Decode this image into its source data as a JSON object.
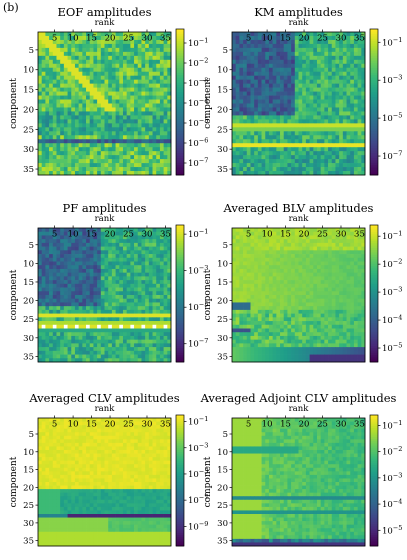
{
  "figure": {
    "panel_label": "(b)"
  },
  "chart_data": [
    {
      "type": "heatmap",
      "title": "EOF amplitudes",
      "xlabel": "rank",
      "ylabel": "component",
      "x_ticks": [
        "5",
        "10",
        "15",
        "20",
        "25",
        "30",
        "35"
      ],
      "y_ticks": [
        "5",
        "10",
        "15",
        "20",
        "25",
        "30",
        "35"
      ],
      "n_rows": 36,
      "n_cols": 36,
      "color_scale": "log",
      "colormap": "viridis",
      "colorbar_ticks": [
        "10^-1",
        "10^-2",
        "10^-3",
        "10^-4",
        "10^-5",
        "10^-6",
        "10^-7"
      ],
      "colorbar_range_log10": [
        -7.6,
        -0.3
      ],
      "description": "patchy, mostly mid-to-high amplitudes with diagonal bright structure; dark band near component 28"
    },
    {
      "type": "heatmap",
      "title": "KM amplitudes",
      "xlabel": "rank",
      "ylabel": "component",
      "x_ticks": [
        "5",
        "10",
        "15",
        "20",
        "25",
        "30",
        "35"
      ],
      "y_ticks": [
        "5",
        "10",
        "15",
        "20",
        "25",
        "30",
        "35"
      ],
      "n_rows": 36,
      "n_cols": 36,
      "color_scale": "log",
      "colormap": "viridis",
      "colorbar_ticks": [
        "10^-1",
        "10^-3",
        "10^-5",
        "10^-7"
      ],
      "colorbar_range_log10": [
        -8.0,
        -0.3
      ],
      "description": "dark upper-left block (components 1-21, ranks 1-17); bright yellow bands at components 24 and 29"
    },
    {
      "type": "heatmap",
      "title": "PF amplitudes",
      "xlabel": "rank",
      "ylabel": "component",
      "x_ticks": [
        "5",
        "10",
        "15",
        "20",
        "25",
        "30",
        "35"
      ],
      "y_ticks": [
        "5",
        "10",
        "15",
        "20",
        "25",
        "30",
        "35"
      ],
      "n_rows": 36,
      "n_cols": 36,
      "color_scale": "log",
      "colormap": "viridis",
      "colorbar_ticks": [
        "10^-1",
        "10^-3",
        "10^-5",
        "10^-7"
      ],
      "colorbar_range_log10": [
        -8.0,
        -0.5
      ],
      "description": "dark upper-left block; bright band at component 24 and dashed bright/white row at component 27"
    },
    {
      "type": "heatmap",
      "title": "Averaged BLV amplitudes",
      "xlabel": "rank",
      "ylabel": "component",
      "x_ticks": [
        "5",
        "10",
        "15",
        "20",
        "25",
        "30",
        "35"
      ],
      "y_ticks": [
        "5",
        "10",
        "15",
        "20",
        "25",
        "30",
        "35"
      ],
      "n_rows": 36,
      "n_cols": 36,
      "color_scale": "log",
      "colormap": "viridis",
      "colorbar_ticks": [
        "10^-1",
        "10^-2",
        "10^-3",
        "10^-4",
        "10^-5"
      ],
      "colorbar_range_log10": [
        -5.5,
        -0.6
      ],
      "description": "mostly yellow-green; dark rows near components 20-21 and 27-28 at low rank; dark lower-right corner"
    },
    {
      "type": "heatmap",
      "title": "Averaged CLV amplitudes",
      "xlabel": "rank",
      "ylabel": "component",
      "x_ticks": [
        "5",
        "10",
        "15",
        "20",
        "25",
        "30",
        "35"
      ],
      "y_ticks": [
        "5",
        "10",
        "15",
        "20",
        "25",
        "30",
        "35"
      ],
      "n_rows": 36,
      "n_cols": 36,
      "color_scale": "log",
      "colormap": "viridis",
      "colorbar_ticks": [
        "10^-1",
        "10^-3",
        "10^-5",
        "10^-7",
        "10^-9"
      ],
      "colorbar_range_log10": [
        -10.5,
        -0.5
      ],
      "description": "nearly uniform yellow in upper rows; teal/blue band at components 21-27; dark row at component 28"
    },
    {
      "type": "heatmap",
      "title": "Averaged Adjoint CLV amplitudes",
      "xlabel": "rank",
      "ylabel": "component",
      "x_ticks": [
        "5",
        "10",
        "15",
        "20",
        "25",
        "30",
        "35"
      ],
      "y_ticks": [
        "5",
        "10",
        "15",
        "20",
        "25",
        "30",
        "35"
      ],
      "n_rows": 36,
      "n_cols": 36,
      "color_scale": "log",
      "colormap": "viridis",
      "colorbar_ticks": [
        "10^-1",
        "10^-2",
        "10^-3",
        "10^-4",
        "10^-5"
      ],
      "colorbar_range_log10": [
        -5.6,
        -0.6
      ],
      "description": "mostly green with yellow left region; blue rows at components 23 and 27; dark bottom row"
    }
  ]
}
